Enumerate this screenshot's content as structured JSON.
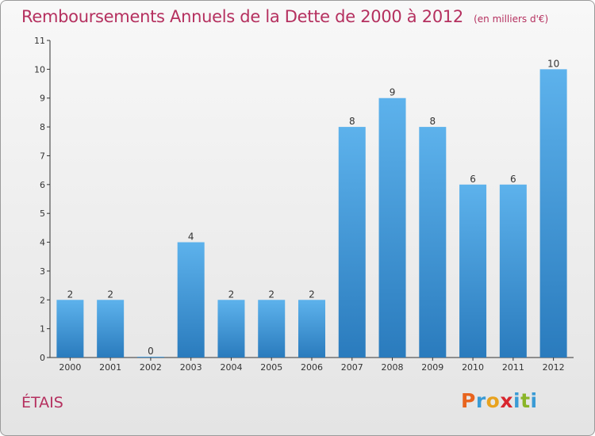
{
  "header": {
    "title": "Remboursements Annuels de la Dette de 2000 à 2012",
    "units": "(en milliers d'€)"
  },
  "footer": {
    "commune": "ÉTAIS",
    "logo": {
      "letters": [
        "P",
        "r",
        "o",
        "x",
        "i",
        "t",
        "i"
      ],
      "colors": [
        "#e8641e",
        "#3a9bd5",
        "#e8a21e",
        "#d8262e",
        "#3a9bd5",
        "#8ab528",
        "#3a9bd5"
      ]
    }
  },
  "colors": {
    "title": "#b5305f",
    "bar_top": "#5db2ec",
    "bar_bottom": "#2a7bbd",
    "axis": "#333333"
  },
  "chart_data": {
    "type": "bar",
    "categories": [
      "2000",
      "2001",
      "2002",
      "2003",
      "2004",
      "2005",
      "2006",
      "2007",
      "2008",
      "2009",
      "2010",
      "2011",
      "2012"
    ],
    "values": [
      2,
      2,
      0,
      4,
      2,
      2,
      2,
      8,
      9,
      8,
      6,
      6,
      10
    ],
    "title": "Remboursements Annuels de la Dette de 2000 à 2012",
    "units": "(en milliers d'€)",
    "ylim": [
      0,
      11
    ],
    "yticks": [
      0,
      1,
      2,
      3,
      4,
      5,
      6,
      7,
      8,
      9,
      10,
      11
    ],
    "grid": false,
    "data_labels": true
  }
}
